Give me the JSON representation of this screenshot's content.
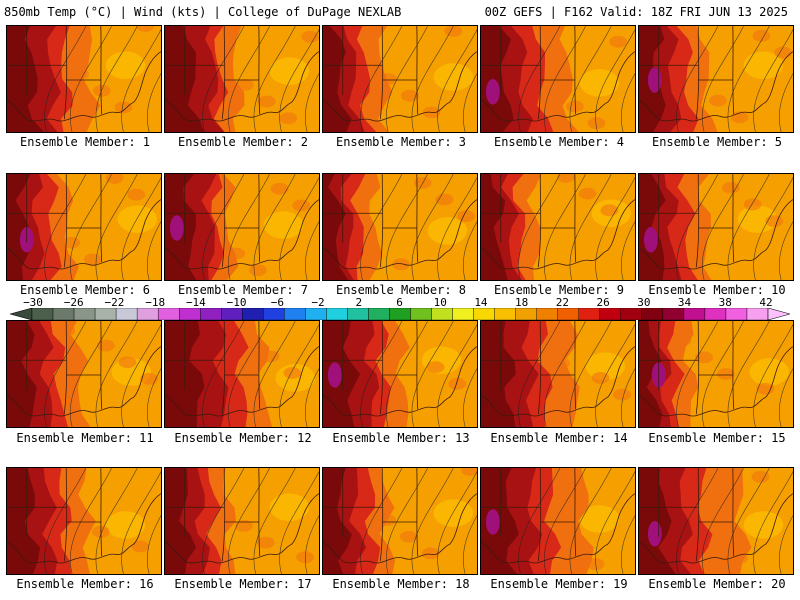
{
  "header": {
    "left": "850mb Temp (°C) | Wind (kts) | College of DuPage NEXLAB",
    "right": "00Z GEFS | F162 Valid: 18Z FRI JUN 13 2025"
  },
  "members": [
    {
      "label": "Ensemble Member: 1",
      "w1": 0.28,
      "w2": 0.36,
      "w3": 0.52,
      "hot": 0
    },
    {
      "label": "Ensemble Member: 2",
      "w1": 0.3,
      "w2": 0.34,
      "w3": 0.45,
      "hot": 0
    },
    {
      "label": "Ensemble Member: 3",
      "w1": 0.18,
      "w2": 0.26,
      "w3": 0.38,
      "hot": 0
    },
    {
      "label": "Ensemble Member: 4",
      "w1": 0.25,
      "w2": 0.38,
      "w3": 0.55,
      "hot": 1
    },
    {
      "label": "Ensemble Member: 5",
      "w1": 0.2,
      "w2": 0.3,
      "w3": 0.42,
      "hot": 1
    },
    {
      "label": "Ensemble Member: 6",
      "w1": 0.18,
      "w2": 0.28,
      "w3": 0.38,
      "hot": 1
    },
    {
      "label": "Ensemble Member: 7",
      "w1": 0.28,
      "w2": 0.32,
      "w3": 0.4,
      "hot": 1
    },
    {
      "label": "Ensemble Member: 8",
      "w1": 0.15,
      "w2": 0.22,
      "w3": 0.32,
      "hot": 0
    },
    {
      "label": "Ensemble Member: 9",
      "w1": 0.18,
      "w2": 0.24,
      "w3": 0.34,
      "hot": 0
    },
    {
      "label": "Ensemble Member: 10",
      "w1": 0.2,
      "w2": 0.3,
      "w3": 0.42,
      "hot": 1
    },
    {
      "label": "Ensemble Member: 11",
      "w1": 0.24,
      "w2": 0.32,
      "w3": 0.46,
      "hot": 0
    },
    {
      "label": "Ensemble Member: 12",
      "w1": 0.35,
      "w2": 0.48,
      "w3": 0.62,
      "hot": 0
    },
    {
      "label": "Ensemble Member: 13",
      "w1": 0.3,
      "w2": 0.38,
      "w3": 0.5,
      "hot": 1
    },
    {
      "label": "Ensemble Member: 14",
      "w1": 0.3,
      "w2": 0.4,
      "w3": 0.58,
      "hot": 0
    },
    {
      "label": "Ensemble Member: 15",
      "w1": 0.15,
      "w2": 0.22,
      "w3": 0.32,
      "hot": 1
    },
    {
      "label": "Ensemble Member: 16",
      "w1": 0.26,
      "w2": 0.36,
      "w3": 0.5,
      "hot": 0
    },
    {
      "label": "Ensemble Member: 17",
      "w1": 0.22,
      "w2": 0.3,
      "w3": 0.4,
      "hot": 0
    },
    {
      "label": "Ensemble Member: 18",
      "w1": 0.2,
      "w2": 0.3,
      "w3": 0.4,
      "hot": 0
    },
    {
      "label": "Ensemble Member: 19",
      "w1": 0.32,
      "w2": 0.44,
      "w3": 0.66,
      "hot": 1
    },
    {
      "label": "Ensemble Member: 20",
      "w1": 0.28,
      "w2": 0.4,
      "w3": 0.65,
      "hot": 1
    }
  ],
  "colorbar": {
    "labels": [
      "−30",
      "−26",
      "−22",
      "−18",
      "−14",
      "−10",
      "−6",
      "−2",
      "2",
      "6",
      "10",
      "14",
      "18",
      "22",
      "26",
      "30",
      "34",
      "38",
      "42"
    ],
    "colors": [
      "#4c5f4c",
      "#6b7a6b",
      "#8a968a",
      "#a8b2a8",
      "#c8c8d8",
      "#e0a0e0",
      "#e060e0",
      "#c030d0",
      "#9020c0",
      "#6020c0",
      "#2020b0",
      "#2040e0",
      "#2080f0",
      "#20b0f0",
      "#20d0e0",
      "#20c0a0",
      "#20b060",
      "#20a020",
      "#70c020",
      "#c0e020",
      "#f0f020",
      "#f8d800",
      "#f8c000",
      "#f0a000",
      "#f08000",
      "#f06000",
      "#e02010",
      "#c00010",
      "#a00010",
      "#800010",
      "#900030",
      "#c01090",
      "#e030c0",
      "#f060e0",
      "#f8a0f0"
    ],
    "left_arrow_color": "#3a4a3a",
    "right_arrow_color": "#ffc0ff"
  },
  "palette": {
    "darkest": "#7a0a0a",
    "dark": "#a81212",
    "red": "#d82818",
    "orange": "#f07010",
    "light": "#f5a000",
    "yellow": "#fbbc00",
    "hot": "#a0107a"
  }
}
